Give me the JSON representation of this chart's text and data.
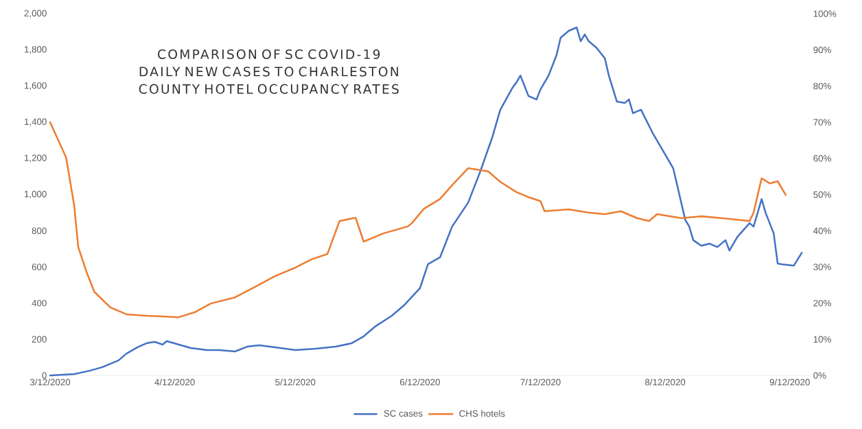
{
  "chart_data": {
    "type": "line",
    "title": "COMPARISON OF SC COVID-19 DAILY NEW CASES TO CHARLESTON COUNTY HOTEL OCCUPANCY RATES",
    "xlim": [
      "2020-03-12",
      "2020-09-17"
    ],
    "xticks": [
      {
        "value": "2020-03-12",
        "label": "3/12/2020"
      },
      {
        "value": "2020-04-12",
        "label": "4/12/2020"
      },
      {
        "value": "2020-05-12",
        "label": "5/12/2020"
      },
      {
        "value": "2020-06-12",
        "label": "6/12/2020"
      },
      {
        "value": "2020-07-12",
        "label": "7/12/2020"
      },
      {
        "value": "2020-08-12",
        "label": "8/12/2020"
      },
      {
        "value": "2020-09-12",
        "label": "9/12/2020"
      }
    ],
    "ylim": [
      0,
      2000
    ],
    "yticks": [
      0,
      200,
      400,
      600,
      800,
      {
        "value": 1000,
        "label": "1,000"
      },
      {
        "value": 1200,
        "label": "1,200"
      },
      {
        "value": 1400,
        "label": "1,400"
      },
      {
        "value": 1600,
        "label": "1,600"
      },
      {
        "value": 1800,
        "label": "1,800"
      },
      {
        "value": 2000,
        "label": "2,000"
      }
    ],
    "y2lim": [
      0,
      100
    ],
    "y2ticks": [
      {
        "value": 0,
        "label": "0%"
      },
      {
        "value": 10,
        "label": "10%"
      },
      {
        "value": 20,
        "label": "20%"
      },
      {
        "value": 30,
        "label": "30%"
      },
      {
        "value": 40,
        "label": "40%"
      },
      {
        "value": 50,
        "label": "50%"
      },
      {
        "value": 60,
        "label": "60%"
      },
      {
        "value": 70,
        "label": "70%"
      },
      {
        "value": 80,
        "label": "80%"
      },
      {
        "value": 90,
        "label": "90%"
      },
      {
        "value": 100,
        "label": "100%"
      }
    ],
    "legend": "bottom",
    "series": [
      {
        "name": "SC cases",
        "color": "#4472c4",
        "x": [
          "2020-03-12",
          "2020-03-18",
          "2020-03-22",
          "2020-03-25",
          "2020-03-29",
          "2020-03-31",
          "2020-04-03",
          "2020-04-05",
          "2020-04-07",
          "2020-04-09",
          "2020-04-10",
          "2020-04-13",
          "2020-04-16",
          "2020-04-20",
          "2020-04-23",
          "2020-04-27",
          "2020-04-30",
          "2020-05-03",
          "2020-05-07",
          "2020-05-12",
          "2020-05-17",
          "2020-05-22",
          "2020-05-26",
          "2020-05-29",
          "2020-06-01",
          "2020-06-05",
          "2020-06-08",
          "2020-06-12",
          "2020-06-14",
          "2020-06-17",
          "2020-06-20",
          "2020-06-24",
          "2020-06-27",
          "2020-06-30",
          "2020-07-02",
          "2020-07-05",
          "2020-07-06",
          "2020-07-07",
          "2020-07-09",
          "2020-07-11",
          "2020-07-12",
          "2020-07-14",
          "2020-07-16",
          "2020-07-17",
          "2020-07-19",
          "2020-07-21",
          "2020-07-22",
          "2020-07-23",
          "2020-07-24",
          "2020-07-26",
          "2020-07-28",
          "2020-07-29",
          "2020-07-31",
          "2020-08-02",
          "2020-08-03",
          "2020-08-04",
          "2020-08-06",
          "2020-08-09",
          "2020-08-11",
          "2020-08-14",
          "2020-08-15",
          "2020-08-17",
          "2020-08-18",
          "2020-08-19",
          "2020-08-21",
          "2020-08-23",
          "2020-08-25",
          "2020-08-27",
          "2020-08-28",
          "2020-08-30",
          "2020-09-02",
          "2020-09-03",
          "2020-09-05",
          "2020-09-06",
          "2020-09-08",
          "2020-09-09",
          "2020-09-10",
          "2020-09-13",
          "2020-09-15"
        ],
        "values": [
          0,
          8,
          27,
          46,
          83,
          121,
          159,
          178,
          186,
          171,
          190,
          171,
          152,
          140,
          140,
          133,
          159,
          167,
          156,
          140,
          148,
          159,
          178,
          216,
          273,
          330,
          387,
          482,
          615,
          653,
          823,
          956,
          1127,
          1317,
          1469,
          1590,
          1620,
          1658,
          1545,
          1526,
          1582,
          1658,
          1772,
          1867,
          1905,
          1924,
          1848,
          1886,
          1848,
          1810,
          1753,
          1658,
          1514,
          1507,
          1526,
          1450,
          1469,
          1336,
          1260,
          1146,
          1051,
          861,
          823,
          748,
          717,
          729,
          710,
          748,
          691,
          767,
          842,
          823,
          975,
          899,
          786,
          619,
          615,
          607,
          679
        ]
      },
      {
        "name": "CHS hotels",
        "color": "#ed7d31",
        "axis": "y2",
        "x": [
          "2020-03-12",
          "2020-03-16",
          "2020-03-18",
          "2020-03-19",
          "2020-03-21",
          "2020-03-23",
          "2020-03-27",
          "2020-03-31",
          "2020-04-05",
          "2020-04-09",
          "2020-04-13",
          "2020-04-17",
          "2020-04-21",
          "2020-04-27",
          "2020-05-02",
          "2020-05-07",
          "2020-05-12",
          "2020-05-16",
          "2020-05-20",
          "2020-05-23",
          "2020-05-27",
          "2020-05-29",
          "2020-06-03",
          "2020-06-09",
          "2020-06-10",
          "2020-06-13",
          "2020-06-17",
          "2020-06-20",
          "2020-06-24",
          "2020-06-29",
          "2020-07-02",
          "2020-07-06",
          "2020-07-09",
          "2020-07-12",
          "2020-07-13",
          "2020-07-19",
          "2020-07-24",
          "2020-07-28",
          "2020-08-01",
          "2020-08-05",
          "2020-08-08",
          "2020-08-10",
          "2020-08-16",
          "2020-08-21",
          "2020-08-26",
          "2020-09-02",
          "2020-09-03",
          "2020-09-05",
          "2020-09-07",
          "2020-09-09",
          "2020-09-11"
        ],
        "values": [
          70,
          60.2,
          46.9,
          35.5,
          28.8,
          23.1,
          18.8,
          16.9,
          16.5,
          16.3,
          16.1,
          17.5,
          19.9,
          21.6,
          24.5,
          27.5,
          29.8,
          32.1,
          33.6,
          42.7,
          43.6,
          37,
          39.3,
          41.2,
          42.1,
          46.1,
          48.8,
          52.6,
          57.3,
          56.4,
          53.5,
          50.7,
          49.3,
          48.2,
          45.4,
          45.9,
          45,
          44.6,
          45.4,
          43.5,
          42.7,
          44.6,
          43.5,
          44,
          43.5,
          42.7,
          45,
          54.5,
          53.1,
          53.7,
          49.9
        ]
      }
    ]
  }
}
